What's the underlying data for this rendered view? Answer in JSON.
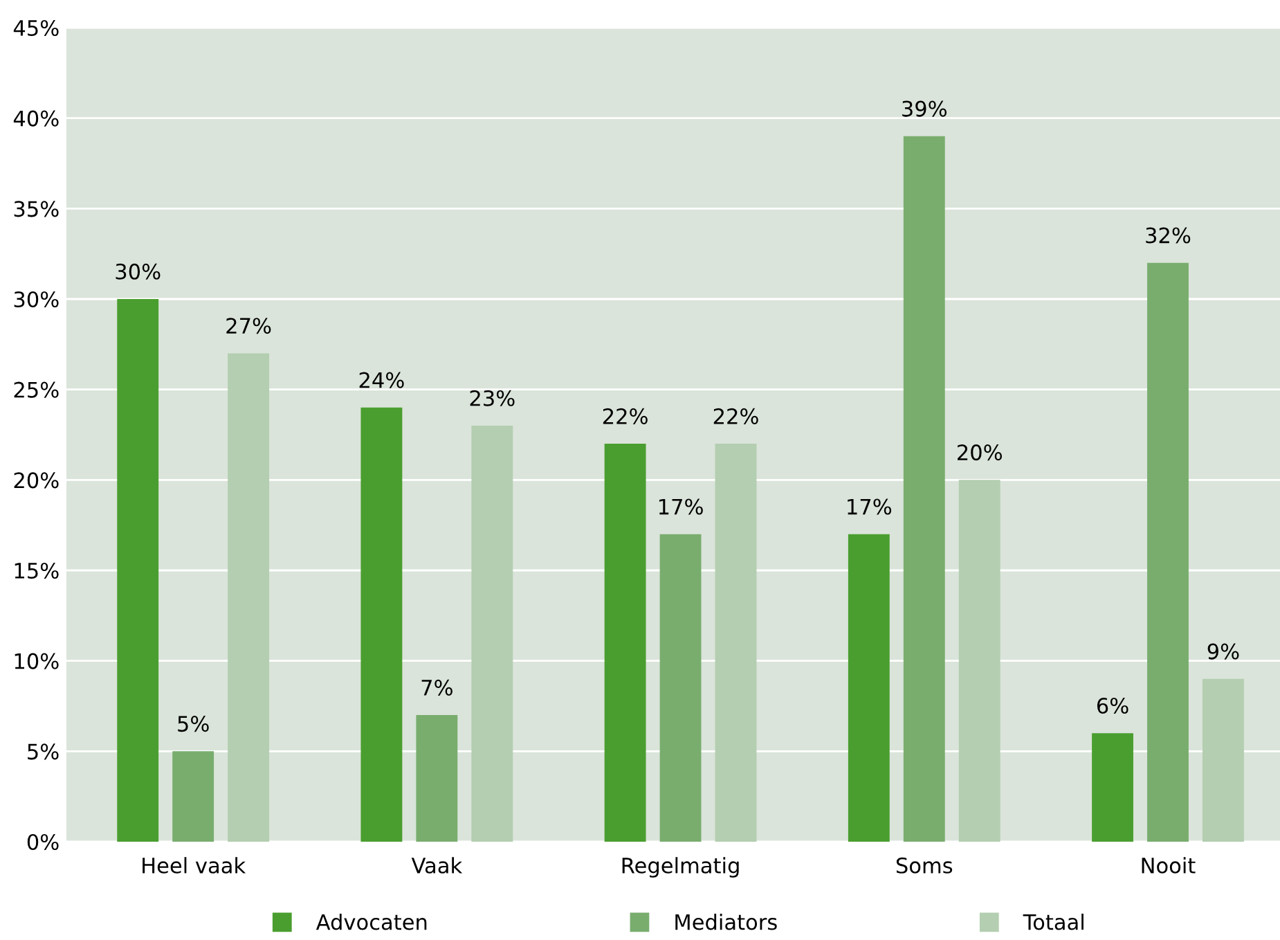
{
  "chart_data": {
    "type": "bar",
    "categories": [
      "Heel vaak",
      "Vaak",
      "Regelmatig",
      "Soms",
      "Nooit"
    ],
    "series": [
      {
        "name": "Advocaten",
        "color": "#4a9e2f",
        "values": [
          30,
          24,
          22,
          17,
          6
        ],
        "value_labels": [
          "30%",
          "24%",
          "22%",
          "17%",
          "6%"
        ]
      },
      {
        "name": "Mediators",
        "color": "#79ad6e",
        "values": [
          5,
          7,
          17,
          39,
          32
        ],
        "value_labels": [
          "5%",
          "7%",
          "17%",
          "39%",
          "32%"
        ]
      },
      {
        "name": "Totaal",
        "color": "#b3ceb0",
        "values": [
          27,
          23,
          22,
          20,
          9
        ],
        "value_labels": [
          "27%",
          "23%",
          "22%",
          "20%",
          "9%"
        ]
      }
    ],
    "ylim": [
      0,
      45
    ],
    "yticks": [
      {
        "value": 0,
        "label": "0%"
      },
      {
        "value": 5,
        "label": "5%"
      },
      {
        "value": 10,
        "label": "10%"
      },
      {
        "value": 15,
        "label": "15%"
      },
      {
        "value": 20,
        "label": "20%"
      },
      {
        "value": 25,
        "label": "25%"
      },
      {
        "value": 30,
        "label": "30%"
      },
      {
        "value": 35,
        "label": "35%"
      },
      {
        "value": 40,
        "label": "40%"
      },
      {
        "value": 45,
        "label": "45%"
      }
    ],
    "grid": "y",
    "legend": "bottom"
  }
}
